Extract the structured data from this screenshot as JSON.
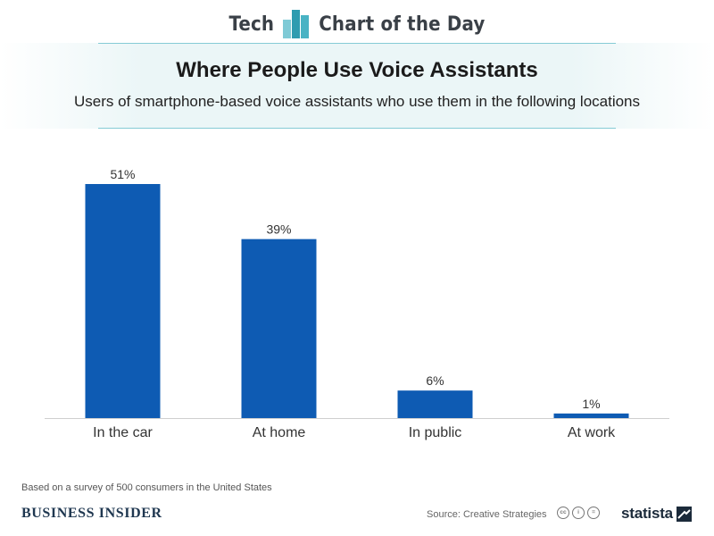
{
  "header": {
    "left_word": "Tech",
    "right_word": "Chart of the Day",
    "logo_icon": "bar-chart-logo-icon"
  },
  "colors": {
    "bar": "#0e5bb3",
    "accent_teal": "#49b3c4",
    "banner_bg": "#ebf6f7"
  },
  "chart_data": {
    "type": "bar",
    "title": "Where People Use Voice Assistants",
    "subtitle": "Users of smartphone-based voice assistants who use them in the following locations",
    "categories": [
      "In the car",
      "At home",
      "In public",
      "At work"
    ],
    "values": [
      51,
      39,
      6,
      1
    ],
    "value_labels": [
      "51%",
      "39%",
      "6%",
      "1%"
    ],
    "unit": "%",
    "xlabel": "",
    "ylabel": "",
    "ylim": [
      0,
      51
    ],
    "grid": false,
    "legend": "none"
  },
  "footnote": "Based on a survey of 500 consumers in the United States",
  "footer": {
    "publisher": "BUSINESS INSIDER",
    "source": "Source: Creative Strategies",
    "cc_icons": [
      "cc",
      "i",
      "="
    ],
    "brand": "statista"
  }
}
